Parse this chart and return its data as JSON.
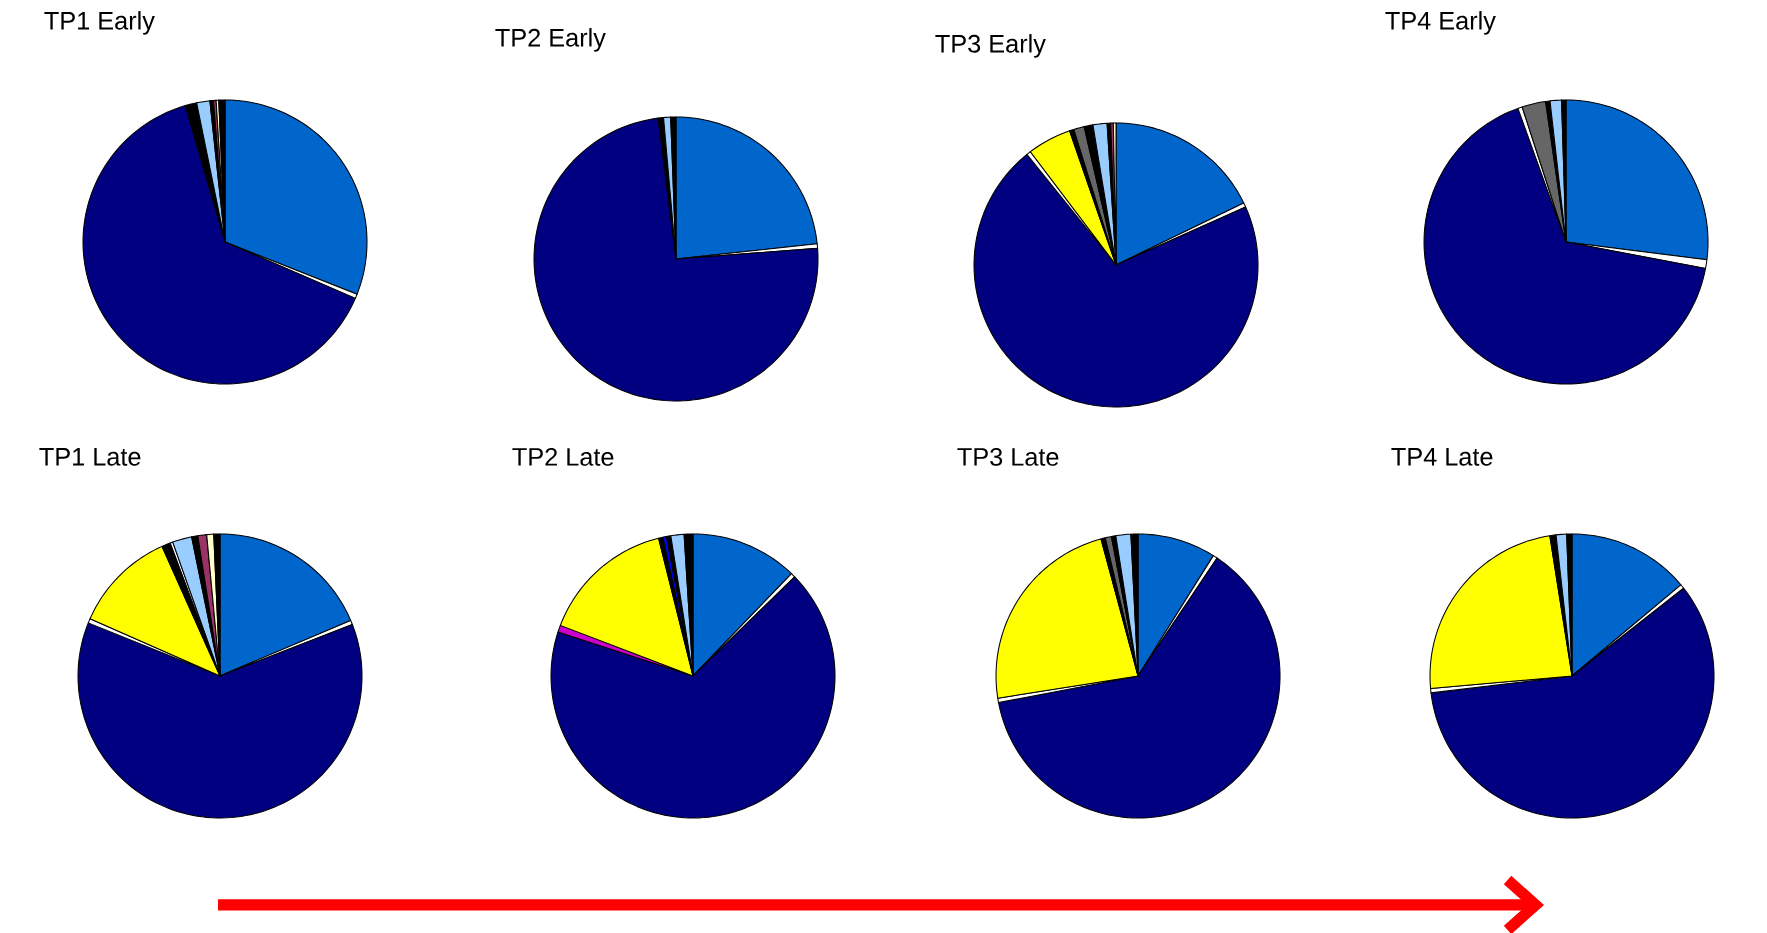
{
  "chart_data": [
    {
      "type": "pie",
      "title": "TP1 Early",
      "categories": [
        null,
        null,
        null,
        null,
        null,
        null,
        null,
        null,
        null
      ],
      "values": [
        31,
        0.5,
        64,
        1.3,
        1.5,
        0.4,
        0.3,
        0.3,
        0.7
      ],
      "colors": [
        "#0066cc",
        "#ffffff",
        "#000080",
        "#000000",
        "#99ccff",
        "#000000",
        "#993366",
        "#ffffcc",
        "#000000"
      ]
    },
    {
      "type": "pie",
      "title": "TP2 Early",
      "categories": [
        null,
        null,
        null,
        null,
        null,
        null
      ],
      "values": [
        23.3,
        0.5,
        74.2,
        0.6,
        0.8,
        0.6
      ],
      "colors": [
        "#0066cc",
        "#ffffff",
        "#000080",
        "#000000",
        "#99ccff",
        "#000000"
      ]
    },
    {
      "type": "pie",
      "title": "TP3 Early",
      "categories": [
        null,
        null,
        null,
        null,
        null,
        null,
        null,
        null,
        null,
        null,
        null,
        null
      ],
      "values": [
        17.8,
        0.5,
        70.9,
        0.5,
        5.0,
        0.5,
        1.2,
        1.0,
        1.6,
        0.4,
        0.3,
        0.3
      ],
      "colors": [
        "#0066cc",
        "#ffffff",
        "#000080",
        "#ffffff",
        "#ffff00",
        "#000000",
        "#666666",
        "#000000",
        "#99ccff",
        "#000000",
        "#993366",
        "#ffffcc"
      ]
    },
    {
      "type": "pie",
      "title": "TP4 Early",
      "categories": [
        null,
        null,
        null,
        null,
        null,
        null,
        null,
        null
      ],
      "values": [
        27,
        1.0,
        66.5,
        0.5,
        2.7,
        0.5,
        1.3,
        0.5
      ],
      "colors": [
        "#0066cc",
        "#ffffff",
        "#000080",
        "#ffffff",
        "#666666",
        "#000000",
        "#99ccff",
        "#000000"
      ]
    },
    {
      "type": "pie",
      "title": "TP1 Late",
      "categories": [
        null,
        null,
        null,
        null,
        null,
        null,
        null,
        null,
        null,
        null,
        null,
        null
      ],
      "values": [
        18.6,
        0.5,
        62.0,
        0.5,
        11.7,
        1.0,
        0.3,
        2.2,
        0.7,
        1.0,
        0.8,
        0.7
      ],
      "colors": [
        "#0066cc",
        "#ffffff",
        "#000080",
        "#ffffff",
        "#ffff00",
        "#000000",
        "#ffffff",
        "#99ccff",
        "#000000",
        "#993366",
        "#ffffcc",
        "#000000"
      ]
    },
    {
      "type": "pie",
      "title": "TP2 Late",
      "categories": [
        null,
        null,
        null,
        null,
        null,
        null,
        null,
        null,
        null,
        null
      ],
      "values": [
        12.2,
        0.5,
        67.3,
        0.8,
        15.3,
        0.5,
        0.4,
        0.5,
        1.5,
        1.0
      ],
      "colors": [
        "#0066cc",
        "#ffffff",
        "#000080",
        "#cc00cc",
        "#ffff00",
        "#000000",
        "#0000ff",
        "#000000",
        "#99ccff",
        "#000000"
      ]
    },
    {
      "type": "pie",
      "title": "TP3 Late",
      "categories": [
        null,
        null,
        null,
        null,
        null,
        null,
        null,
        null,
        null,
        null
      ],
      "values": [
        8.9,
        0.5,
        62.6,
        0.5,
        23.3,
        0.5,
        0.7,
        0.5,
        1.7,
        0.8
      ],
      "colors": [
        "#0066cc",
        "#ffffff",
        "#000080",
        "#ffffff",
        "#ffff00",
        "#000000",
        "#666666",
        "#000000",
        "#99ccff",
        "#000000"
      ]
    },
    {
      "type": "pie",
      "title": "TP4 Late",
      "categories": [
        null,
        null,
        null,
        null,
        null,
        null,
        null,
        null
      ],
      "values": [
        13.9,
        0.5,
        58.7,
        0.5,
        23.9,
        0.7,
        1.2,
        0.6
      ],
      "colors": [
        "#0066cc",
        "#ffffff",
        "#000080",
        "#ffffff",
        "#ffff00",
        "#000000",
        "#99ccff",
        "#000000"
      ]
    }
  ]
}
